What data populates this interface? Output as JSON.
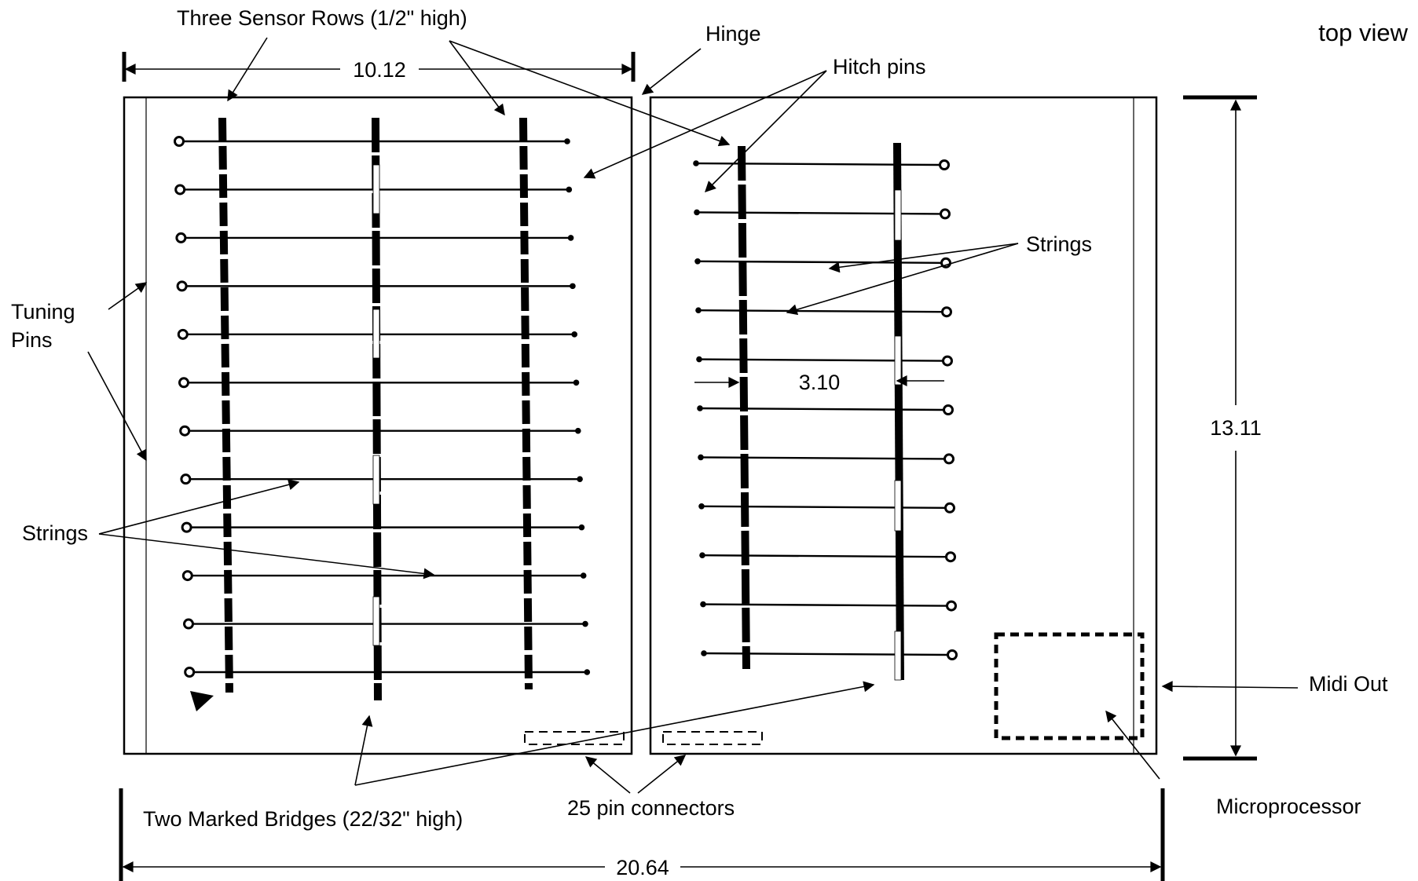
{
  "view_label": "top view",
  "labels": {
    "sensor_rows": "Three Sensor Rows (1/2\" high)",
    "hinge": "Hinge",
    "hitch_pins": "Hitch pins",
    "tuning_pins_line1": "Tuning",
    "tuning_pins_line2": "Pins",
    "strings_left": "Strings",
    "strings_right": "Strings",
    "marked_bridges": "Two Marked Bridges (22/32\" high)",
    "pin_connectors": "25 pin connectors",
    "midi_out": "Midi Out",
    "microprocessor": "Microprocessor"
  },
  "dimensions": {
    "panel_width": "10.12",
    "total_width": "20.64",
    "height": "13.11",
    "bridge_spacing": "3.10"
  },
  "left_panel": {
    "string_count": 12,
    "sensor_rows": 3
  },
  "right_panel": {
    "string_count": 11,
    "bridges": 2
  },
  "colors": {
    "ink": "#000000",
    "background": "#ffffff"
  }
}
